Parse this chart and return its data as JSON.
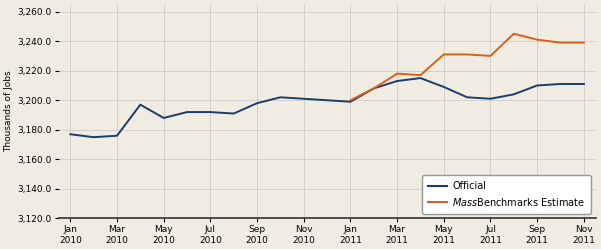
{
  "ylabel": "Thousands of Jobs",
  "background_color": "#f0ece2",
  "plot_bg_color": "#f0ece2",
  "grid_color": "#cccccc",
  "x_labels": [
    "Jan\n2010",
    "Mar\n2010",
    "May\n2010",
    "Jul\n2010",
    "Sep\n2010",
    "Nov\n2010",
    "Jan\n2011",
    "Mar\n2011",
    "May\n2011",
    "Jul\n2011",
    "Sep\n2011",
    "Nov\n2011"
  ],
  "ylim": [
    3120.0,
    3265.0
  ],
  "yticks": [
    3120.0,
    3140.0,
    3160.0,
    3180.0,
    3200.0,
    3220.0,
    3240.0,
    3260.0
  ],
  "official_color": "#1a3d6b",
  "massbench_color": "#d95f1a",
  "official_data": [
    3177.0,
    3175.0,
    3176.0,
    3197.0,
    3188.0,
    3192.0,
    3192.0,
    3191.0,
    3198.0,
    3202.0,
    3201.0,
    3200.0,
    3199.0,
    3208.0,
    3213.0,
    3215.0,
    3209.0,
    3202.0,
    3201.0,
    3204.0,
    3210.0,
    3211.0,
    3211.0
  ],
  "massbench_data": [
    null,
    null,
    null,
    null,
    null,
    null,
    null,
    null,
    null,
    null,
    null,
    null,
    3200.0,
    3208.0,
    3218.0,
    3217.0,
    3231.0,
    3231.0,
    3230.0,
    3245.0,
    3241.0,
    3239.0,
    3239.0
  ],
  "n_points": 23
}
